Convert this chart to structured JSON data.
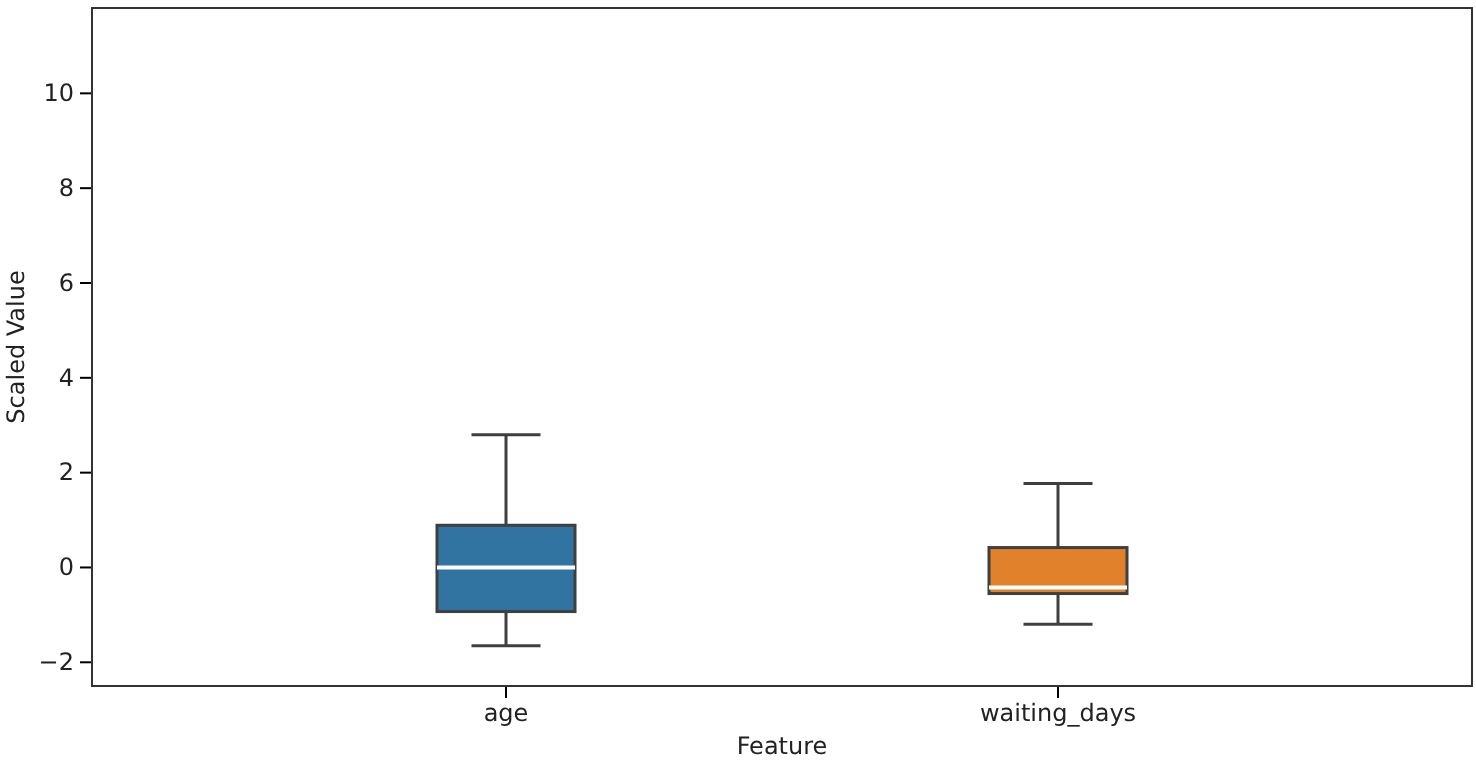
{
  "chart_data": {
    "type": "box",
    "xlabel": "Feature",
    "ylabel": "Scaled Value",
    "categories": [
      "age",
      "waiting_days"
    ],
    "colors": [
      "#3274a1",
      "#e1812c"
    ],
    "boxes": [
      {
        "low": -1.65,
        "q1": -0.93,
        "median": 0,
        "q3": 0.89,
        "high": 2.8
      },
      {
        "low": -1.2,
        "q1": -0.55,
        "median": -0.42,
        "q3": 0.42,
        "high": 1.77
      }
    ],
    "ylim": [
      -2.5,
      11.8
    ],
    "yticks": [
      -2,
      0,
      2,
      4,
      6,
      8,
      10
    ],
    "grid": false
  }
}
